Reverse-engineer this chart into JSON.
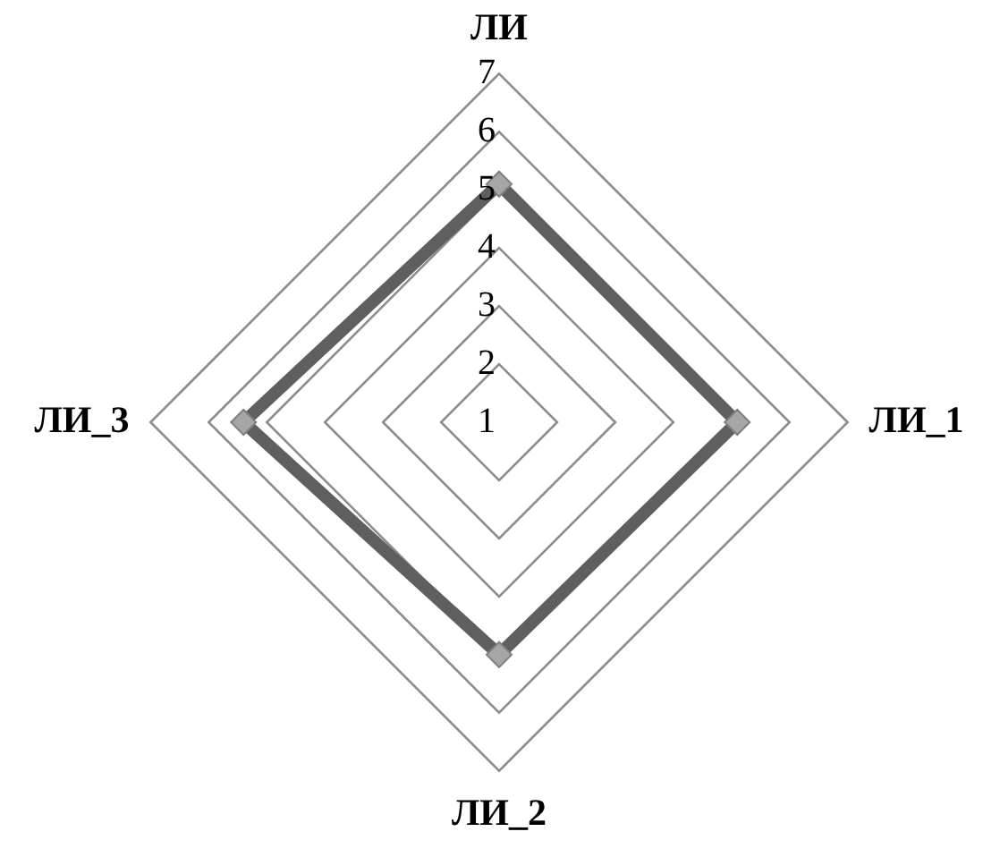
{
  "chart_data": {
    "type": "radar",
    "categories": [
      "ЛИ",
      "ЛИ_1",
      "ЛИ_2",
      "ЛИ_3"
    ],
    "series": [
      {
        "color": "#5f5f5f",
        "values": [
          5.1,
          5.1,
          5.0,
          5.4
        ]
      }
    ],
    "ylim": [
      1,
      7
    ],
    "yticks": [
      1,
      2,
      3,
      4,
      5,
      6,
      7
    ],
    "grid": true,
    "marker": "diamond",
    "legend": false
  }
}
